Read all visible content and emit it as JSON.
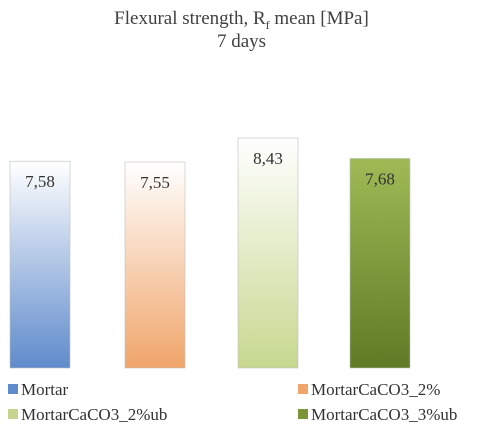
{
  "chart_data": {
    "type": "bar",
    "title_main": "Flexural strength, R",
    "title_sub": "f",
    "title_rest": " mean  [MPa]",
    "subtitle": "7 days",
    "categories": [
      "Mortar",
      "MortarCaCO3_2%",
      "MortarCaCO3_2%ub",
      "MortarCaCO3_3%ub"
    ],
    "values": [
      7.58,
      7.55,
      8.43,
      7.68
    ],
    "labels": [
      "7,58",
      "7,55",
      "8,43",
      "7,68"
    ],
    "ylim": [
      0,
      8.43
    ],
    "grid": false,
    "legend_position": "bottom",
    "colors": [
      "#5f8bcb",
      "#f0a56a",
      "#d9e6b0",
      "#7c9536"
    ]
  }
}
